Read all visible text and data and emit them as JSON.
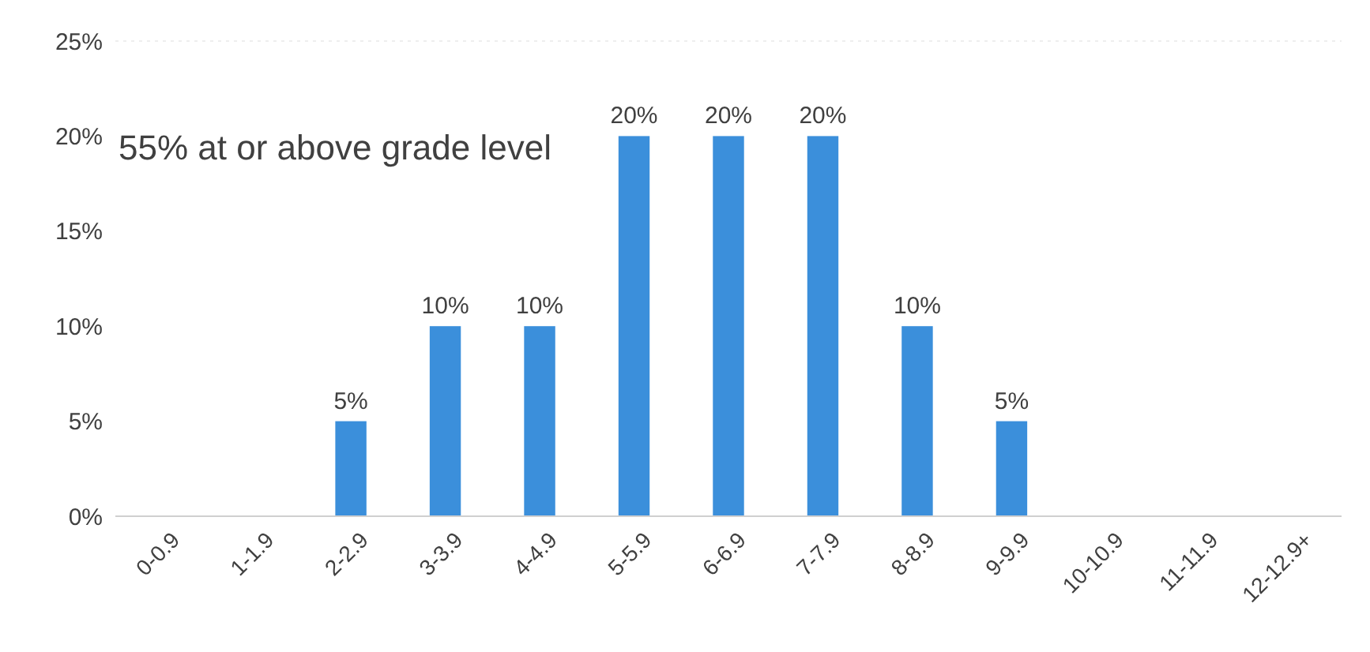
{
  "chart_data": {
    "type": "bar",
    "categories": [
      "0-0.9",
      "1-1.9",
      "2-2.9",
      "3-3.9",
      "4-4.9",
      "5-5.9",
      "6-6.9",
      "7-7.9",
      "8-8.9",
      "9-9.9",
      "10-10.9",
      "11-11.9",
      "12-12.9+"
    ],
    "values": [
      0,
      0,
      5,
      10,
      10,
      20,
      20,
      20,
      10,
      5,
      0,
      0,
      0
    ],
    "value_labels": [
      null,
      null,
      "5%",
      "10%",
      "10%",
      "20%",
      "20%",
      "20%",
      "10%",
      "5%",
      null,
      null,
      null
    ],
    "color": "#3b8fdb",
    "ylim": [
      0,
      25
    ],
    "yticks": [
      {
        "value": 0,
        "label": "0%"
      },
      {
        "value": 5,
        "label": "5%"
      },
      {
        "value": 10,
        "label": "10%"
      },
      {
        "value": 15,
        "label": "15%"
      },
      {
        "value": 20,
        "label": "20%"
      },
      {
        "value": 25,
        "label": "25%"
      }
    ],
    "annotations": [
      "55% at or above grade level"
    ],
    "grid": false
  }
}
